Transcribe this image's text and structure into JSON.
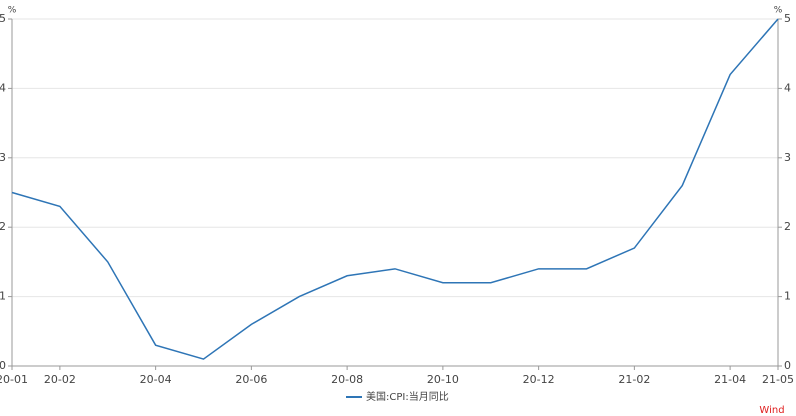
{
  "chart_data": {
    "type": "line",
    "categories": [
      "20-01",
      "20-02",
      null,
      "20-04",
      null,
      "20-06",
      null,
      "20-08",
      null,
      "20-10",
      null,
      "20-12",
      null,
      "21-02",
      null,
      "21-04",
      "21-05"
    ],
    "series": [
      {
        "name": "美国:CPI:当月同比",
        "color": "#2e75b6",
        "values": [
          2.5,
          2.3,
          1.5,
          0.3,
          0.1,
          0.6,
          1.0,
          1.3,
          1.4,
          1.2,
          1.2,
          1.4,
          1.4,
          1.7,
          2.6,
          4.2,
          5.0
        ]
      }
    ],
    "ylim": [
      0,
      5
    ],
    "yticks": [
      0,
      1,
      2,
      3,
      4,
      5
    ],
    "y2lim": [
      0,
      5
    ],
    "y2ticks": [
      0,
      1,
      2,
      3,
      4,
      5
    ],
    "y_unit": "%",
    "y2_unit": "%",
    "grid": true,
    "legend": "bottom",
    "watermark": "Wind"
  }
}
